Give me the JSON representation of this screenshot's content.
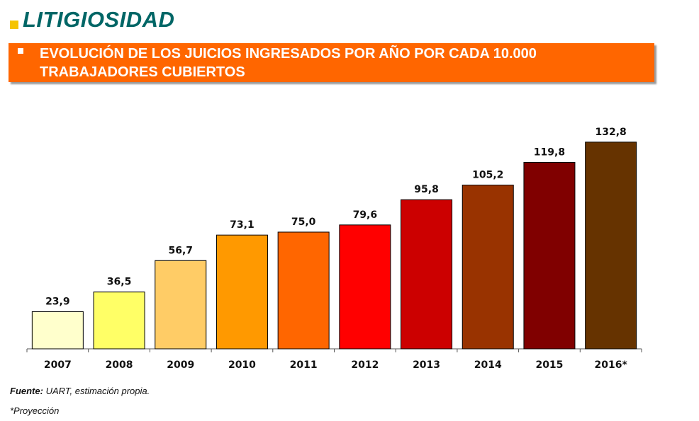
{
  "header": {
    "title": "LITIGIOSIDAD",
    "bullet_color": "#f5c400"
  },
  "banner": {
    "line1": "EVOLUCIÓN DE LOS JUICIOS INGRESADOS POR AÑO POR CADA 10.000",
    "line2": "TRABAJADORES CUBIERTOS",
    "background": "#ff6600"
  },
  "chart_data": {
    "type": "bar",
    "categories": [
      "2007",
      "2008",
      "2009",
      "2010",
      "2011",
      "2012",
      "2013",
      "2014",
      "2015",
      "2016*"
    ],
    "values": [
      23.9,
      36.5,
      56.7,
      73.1,
      75.0,
      79.6,
      95.8,
      105.2,
      119.8,
      132.8
    ],
    "value_labels": [
      "23,9",
      "36,5",
      "56,7",
      "73,1",
      "75,0",
      "79,6",
      "95,8",
      "105,2",
      "119,8",
      "132,8"
    ],
    "colors": [
      "#ffffcc",
      "#ffff66",
      "#ffcc66",
      "#ff9900",
      "#ff6600",
      "#ff0000",
      "#cc0000",
      "#993300",
      "#800000",
      "#663300"
    ],
    "ylim": [
      0,
      135
    ],
    "grid": false,
    "legend": "none"
  },
  "footer": {
    "source_label": "Fuente:",
    "source_text": " UART, estimación propia.",
    "note": "*Proyección"
  }
}
